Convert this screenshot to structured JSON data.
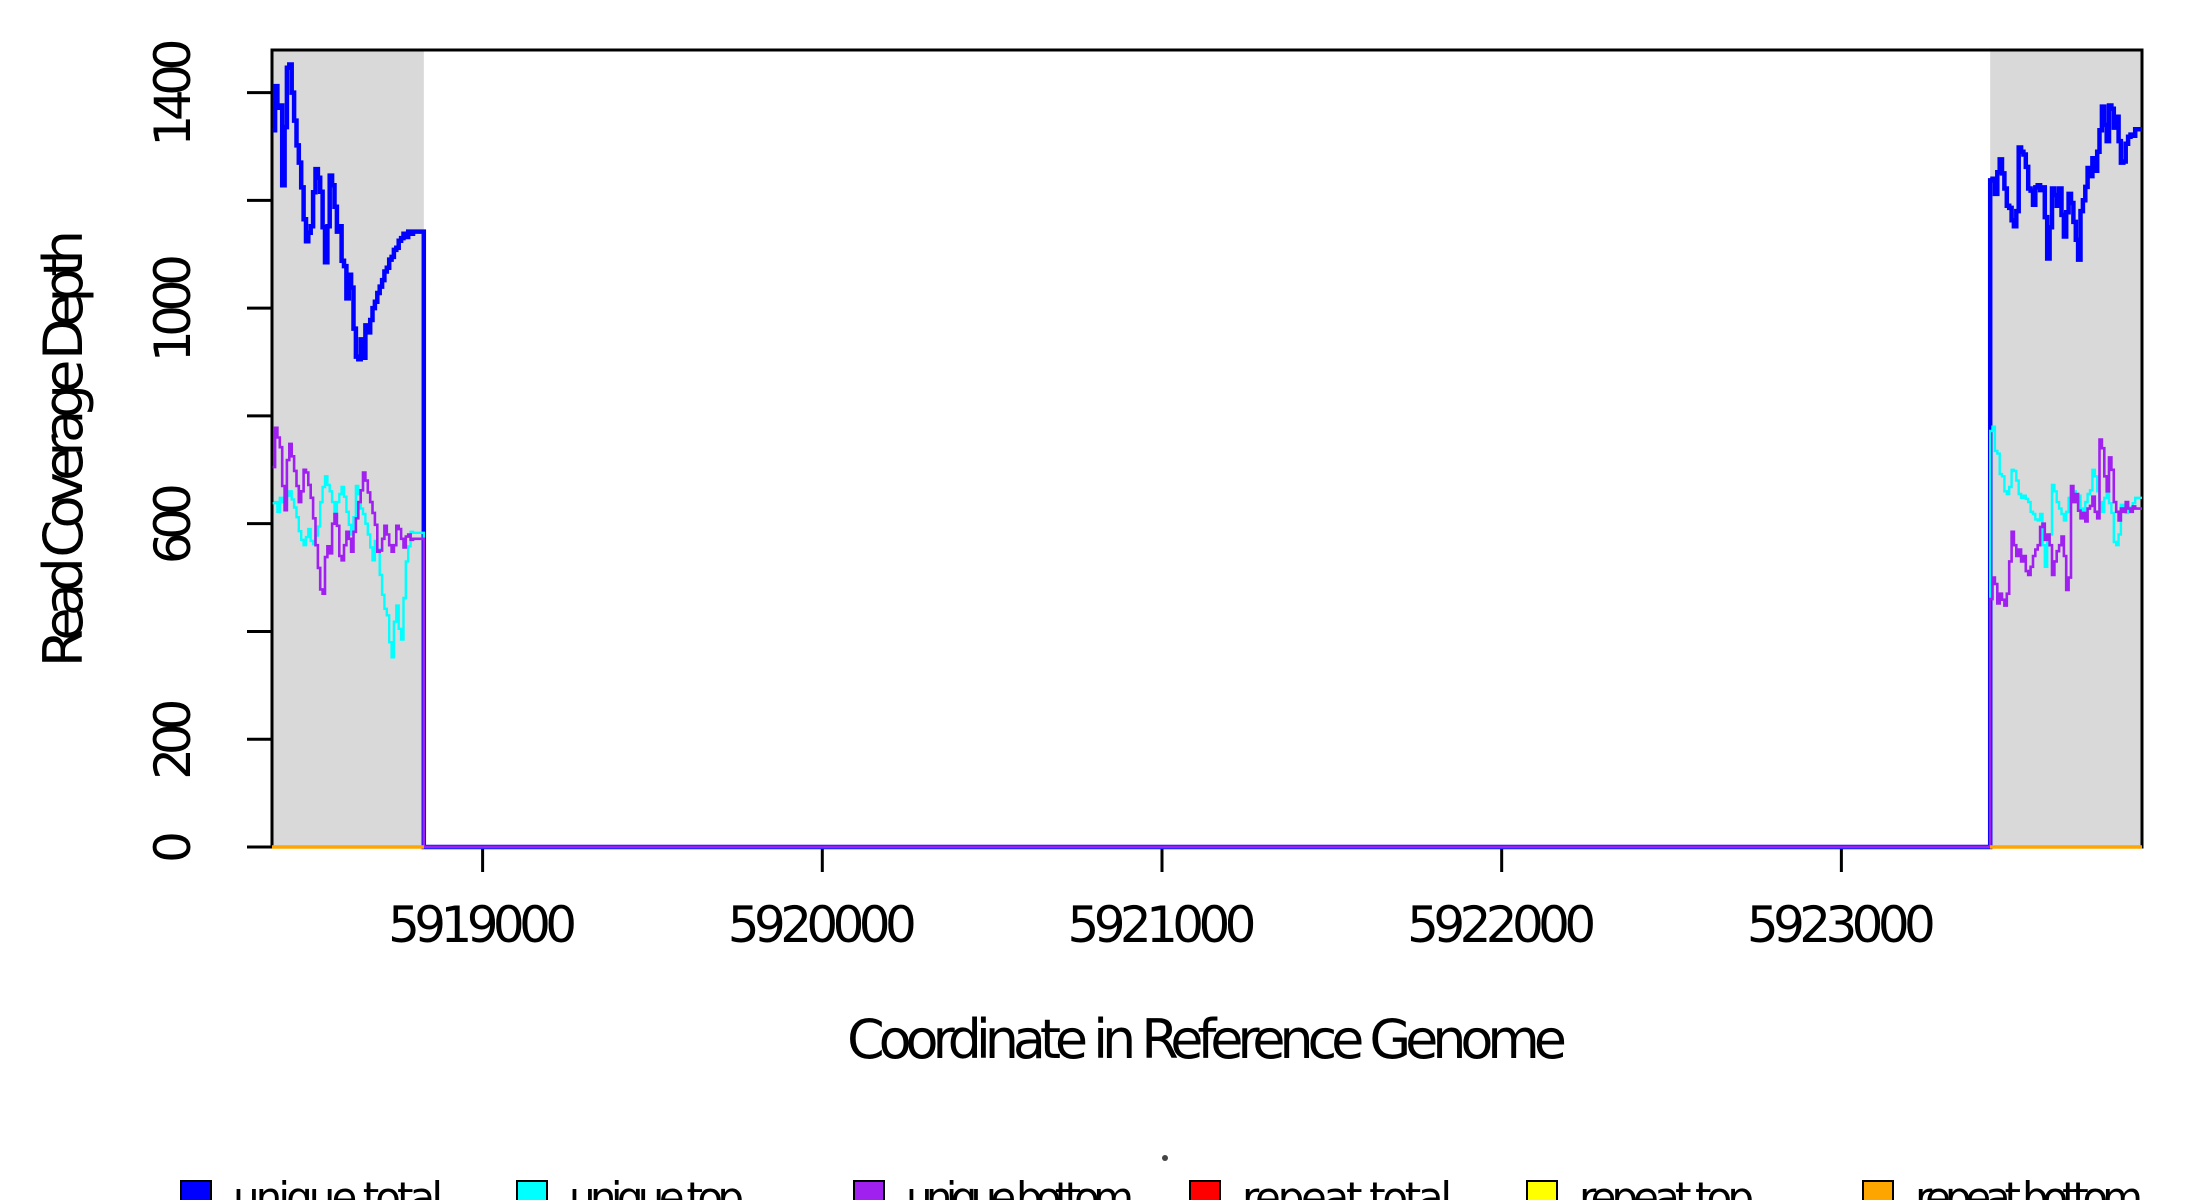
{
  "chart_data": {
    "type": "line",
    "title": "",
    "xlabel": "Coordinate in Reference Genome",
    "ylabel": "Read Coverage Depth",
    "xlim": [
      5918380,
      5923885
    ],
    "ylim": [
      0,
      1479
    ],
    "x_ticks": [
      5919000,
      5920000,
      5921000,
      5922000,
      5923000
    ],
    "y_ticks": [
      0,
      200,
      400,
      600,
      800,
      1000,
      1200,
      1400
    ],
    "y_labeled_ticks": [
      0,
      200,
      600,
      1000,
      1400
    ],
    "grid": false,
    "legend_position": "bottom",
    "shade_color": "#D9D9D9",
    "frame_color": "#000000",
    "shaded_x_ranges": [
      [
        5918380,
        5918827
      ],
      [
        5923438,
        5923885
      ]
    ],
    "noise_dot_visible": true,
    "series": [
      {
        "name": "unique total",
        "color": "#0000FF",
        "width": 4.5,
        "segments": [
          [
            {
              "x0": 5918382,
              "dx": 7,
              "y": [
                1330,
                1412,
                1372,
                1376,
                1228,
                1336,
                1446,
                1452,
                1400,
                1348,
                1302,
                1270,
                1224,
                1165,
                1124,
                1140,
                1152,
                1215,
                1258,
                1242,
                1216,
                1150,
                1085,
                1152,
                1246,
                1228,
                1188,
                1142,
                1152,
                1088,
                1078,
                1018,
                1062,
                1038,
                962,
                910,
                905,
                942,
                908,
                968,
                955,
                978,
                1000,
                1012,
                1028,
                1040,
                1052,
                1068,
                1075,
                1090,
                1095,
                1108,
                1112,
                1125,
                1130,
                1138,
                1132,
                1142,
                1138,
                1142
              ]
            },
            {
              "x0": 5918827,
              "dx": 0,
              "y": [
                0
              ]
            },
            {
              "x0": 5923438,
              "dx": 7,
              "y": [
                1237,
                1240,
                1212,
                1252,
                1276,
                1250,
                1222,
                1190,
                1186,
                1163,
                1152,
                1180,
                1298,
                1290,
                1285,
                1262,
                1222,
                1218,
                1192,
                1224,
                1228,
                1219,
                1224,
                1169,
                1092,
                1150,
                1222,
                1210,
                1190,
                1222,
                1173,
                1133,
                1178,
                1212,
                1195,
                1160,
                1127,
                1090,
                1180,
                1200,
                1225,
                1260,
                1245,
                1278,
                1255,
                1290,
                1330,
                1374,
                1340,
                1310,
                1376,
                1370,
                1335,
                1355,
                1310,
                1270,
                1272,
                1305,
                1318,
                1322,
                1320,
                1332
              ]
            },
            {
              "x0": 5923885,
              "dx": 0,
              "y": [
                1332
              ]
            }
          ]
        ]
      },
      {
        "name": "unique top",
        "color": "#00FFFF",
        "width": 2.4,
        "segments": [
          [
            {
              "x0": 5918382,
              "dx": 7,
              "y": [
                638,
                640,
                622,
                648,
                640,
                636,
                652,
                660,
                645,
                630,
                612,
                586,
                570,
                560,
                575,
                590,
                568,
                562,
                578,
                595,
                640,
                668,
                688,
                672,
                660,
                640,
                612,
                640,
                655,
                668,
                650,
                622,
                598,
                580,
                612,
                670,
                655,
                628,
                618,
                600,
                580,
                556,
                532,
                568,
                552,
                505,
                468,
                442,
                430,
                380,
                352,
                418,
                448,
                405,
                385,
                462,
                530,
                558,
                585,
                583
              ]
            },
            {
              "x0": 5918827,
              "dx": 0,
              "y": [
                0
              ]
            },
            {
              "x0": 5923438,
              "dx": 7,
              "y": [
                772,
                780,
                735,
                730,
                692,
                688,
                660,
                655,
                668,
                700,
                698,
                680,
                655,
                648,
                652,
                646,
                640,
                622,
                618,
                608,
                606,
                618,
                560,
                520,
                565,
                580,
                672,
                660,
                640,
                628,
                618,
                606,
                622,
                648,
                652,
                660,
                640,
                652,
                628,
                618,
                640,
                655,
                662,
                700,
                688,
                660,
                640,
                622,
                648,
                660,
                638,
                620,
                566,
                560,
                580,
                635,
                628,
                620,
                630,
                622,
                638,
                648
              ]
            },
            {
              "x0": 5923885,
              "dx": 0,
              "y": [
                648
              ]
            }
          ]
        ]
      },
      {
        "name": "unique bottom",
        "color": "#A020F0",
        "width": 2.6,
        "segments": [
          [
            {
              "x0": 5918382,
              "dx": 7,
              "y": [
                705,
                778,
                760,
                742,
                670,
                625,
                718,
                748,
                725,
                698,
                670,
                640,
                660,
                700,
                695,
                672,
                648,
                610,
                560,
                518,
                478,
                470,
                538,
                558,
                545,
                600,
                618,
                596,
                540,
                532,
                560,
                585,
                572,
                548,
                585,
                610,
                640,
                662,
                695,
                680,
                658,
                640,
                620,
                598,
                548,
                550,
                572,
                596,
                580,
                560,
                548,
                560,
                596,
                590,
                572,
                556,
                576,
                580,
                570,
                572
              ]
            },
            {
              "x0": 5918827,
              "dx": 0,
              "y": [
                0
              ]
            },
            {
              "x0": 5923438,
              "dx": 7,
              "y": [
                460,
                500,
                488,
                452,
                470,
                459,
                448,
                470,
                530,
                585,
                560,
                540,
                552,
                530,
                540,
                512,
                505,
                520,
                540,
                552,
                560,
                594,
                600,
                570,
                580,
                560,
                505,
                530,
                549,
                560,
                576,
                540,
                477,
                500,
                670,
                640,
                655,
                624,
                610,
                620,
                604,
                628,
                633,
                650,
                622,
                610,
                756,
                740,
                688,
                660,
                723,
                700,
                640,
                622,
                606,
                628,
                622,
                640,
                628,
                622,
                632,
                628
              ]
            },
            {
              "x0": 5923885,
              "dx": 0,
              "y": [
                628
              ]
            }
          ]
        ]
      },
      {
        "name": "repeat total",
        "color": "#FF0000",
        "width": 3,
        "segments": [
          [
            {
              "pts": [
                [
                  5918380,
                  0
                ],
                [
                  5918827,
                  0
                ]
              ]
            }
          ],
          [
            {
              "pts": [
                [
                  5923438,
                  0
                ],
                [
                  5923885,
                  0
                ]
              ]
            }
          ]
        ]
      },
      {
        "name": "repeat top",
        "color": "#FFFF00",
        "width": 3,
        "segments": [
          [
            {
              "pts": [
                [
                  5918380,
                  0
                ],
                [
                  5918827,
                  0
                ]
              ]
            }
          ],
          [
            {
              "pts": [
                [
                  5923438,
                  0
                ],
                [
                  5923885,
                  0
                ]
              ]
            }
          ]
        ]
      },
      {
        "name": "repeat bottom",
        "color": "#FFA500",
        "width": 3.6,
        "segments": [
          [
            {
              "pts": [
                [
                  5918380,
                  0
                ],
                [
                  5918827,
                  0
                ]
              ]
            }
          ],
          [
            {
              "pts": [
                [
                  5923438,
                  0
                ],
                [
                  5923885,
                  0
                ]
              ]
            }
          ]
        ]
      }
    ]
  }
}
